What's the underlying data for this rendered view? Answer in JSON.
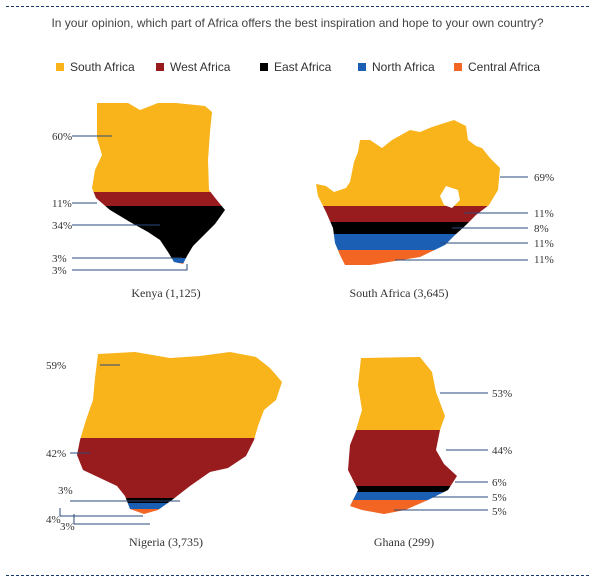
{
  "question": "In your opinion, which part of Africa offers the best inspiration and hope to your own country?",
  "legend": [
    {
      "label": "South Africa",
      "color": "#f9b31b"
    },
    {
      "label": "West Africa",
      "color": "#981b1e"
    },
    {
      "label": "East Africa",
      "color": "#000000"
    },
    {
      "label": "North Africa",
      "color": "#1a5fb4"
    },
    {
      "label": "Central Africa",
      "color": "#f26522"
    }
  ],
  "chart_data": [
    {
      "type": "bar",
      "title": "Kenya (1,125)",
      "categories": [
        "South Africa",
        "West Africa",
        "East Africa",
        "North Africa",
        "Central Africa"
      ],
      "values": [
        60,
        11,
        34,
        3,
        3
      ],
      "labels": [
        "60%",
        "11%",
        "34%",
        "3%",
        "3%"
      ]
    },
    {
      "type": "bar",
      "title": "South Africa (3,645)",
      "categories": [
        "South Africa",
        "West Africa",
        "East Africa",
        "North Africa",
        "Central Africa"
      ],
      "values": [
        69,
        11,
        8,
        11,
        11
      ],
      "labels": [
        "69%",
        "11%",
        "8%",
        "11%",
        "11%"
      ]
    },
    {
      "type": "bar",
      "title": "Nigeria (3,735)",
      "categories": [
        "South Africa",
        "West Africa",
        "East Africa",
        "North Africa",
        "Central Africa"
      ],
      "values": [
        59,
        42,
        3,
        4,
        3
      ],
      "labels": [
        "59%",
        "42%",
        "3%",
        "4%",
        "3%"
      ]
    },
    {
      "type": "bar",
      "title": "Ghana (299)",
      "categories": [
        "South Africa",
        "West Africa",
        "East Africa",
        "North Africa",
        "Central Africa"
      ],
      "values": [
        53,
        44,
        6,
        5,
        5
      ],
      "labels": [
        "53%",
        "44%",
        "6%",
        "5%",
        "5%"
      ]
    }
  ]
}
